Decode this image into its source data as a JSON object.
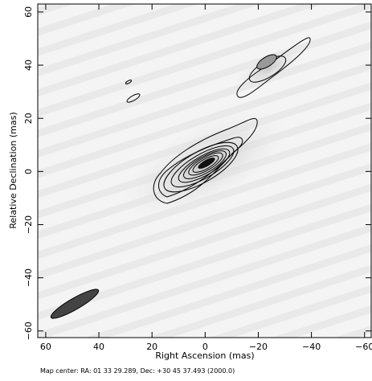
{
  "chart_data": {
    "type": "contour",
    "xlabel": "Right Ascension  (mas)",
    "ylabel": "Relative Declination  (mas)",
    "xlim": [
      63,
      -62.5
    ],
    "ylim": [
      -62.5,
      63
    ],
    "xticks": [
      60,
      40,
      20,
      0,
      {
        "value": -20,
        "label": "−20"
      },
      {
        "value": -40,
        "label": "−40"
      },
      {
        "value": -60,
        "label": "−60"
      }
    ],
    "yticks": [
      {
        "value": -60,
        "label": "−60"
      },
      {
        "value": -40,
        "label": "−40"
      },
      {
        "value": -20,
        "label": "−20"
      },
      0,
      20,
      40,
      60
    ],
    "footer": "Map center:  RA: 01 33 29.289,  Dec: +30 45 37.493 (2000.0)"
  }
}
